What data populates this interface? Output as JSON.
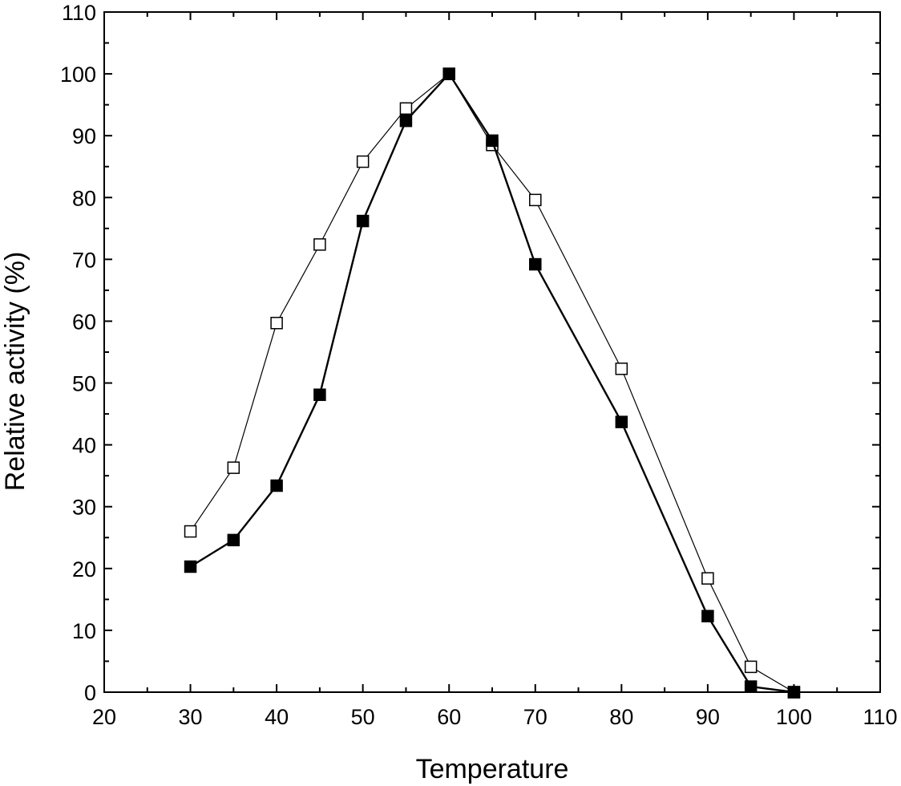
{
  "chart_data": {
    "type": "line",
    "title": "",
    "xlabel": "Temperature",
    "ylabel": "Relative activity (%)",
    "xlim": [
      20,
      110
    ],
    "ylim": [
      0,
      110
    ],
    "xticks": [
      20,
      30,
      40,
      50,
      60,
      70,
      80,
      90,
      100,
      110
    ],
    "yticks": [
      0,
      10,
      20,
      30,
      40,
      50,
      60,
      70,
      80,
      90,
      100,
      110
    ],
    "grid": false,
    "legend": "none",
    "series": [
      {
        "marker": "filled-square",
        "color": "#000000",
        "points": [
          [
            30,
            20.3
          ],
          [
            35,
            24.6
          ],
          [
            40,
            33.4
          ],
          [
            45,
            48.1
          ],
          [
            50,
            76.2
          ],
          [
            55,
            92.4
          ],
          [
            60,
            100.0
          ],
          [
            65,
            89.2
          ],
          [
            70,
            69.2
          ],
          [
            80,
            43.7
          ],
          [
            90,
            12.3
          ],
          [
            95,
            0.9
          ],
          [
            100,
            0.0
          ]
        ]
      },
      {
        "marker": "open-square",
        "color": "#000000",
        "points": [
          [
            30,
            26.0
          ],
          [
            35,
            36.3
          ],
          [
            40,
            59.7
          ],
          [
            45,
            72.4
          ],
          [
            50,
            85.8
          ],
          [
            55,
            94.4
          ],
          [
            60,
            100.0
          ],
          [
            65,
            88.5
          ],
          [
            70,
            79.6
          ],
          [
            80,
            52.3
          ],
          [
            90,
            18.4
          ],
          [
            95,
            4.1
          ],
          [
            100,
            0.0
          ]
        ]
      }
    ]
  }
}
